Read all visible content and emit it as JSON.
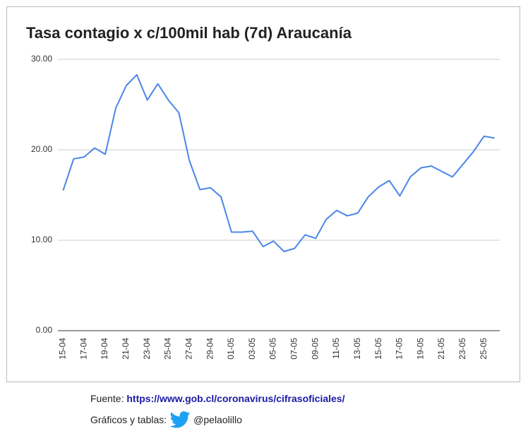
{
  "chart_data": {
    "type": "line",
    "title": "Tasa contagio x c/100mil hab (7d) Araucanía",
    "categories": [
      "15-04",
      null,
      "17-04",
      null,
      "19-04",
      null,
      "21-04",
      null,
      "23-04",
      null,
      "25-04",
      null,
      "27-04",
      null,
      "29-04",
      null,
      "01-05",
      null,
      "03-05",
      null,
      "05-05",
      null,
      "07-05",
      null,
      "09-05",
      null,
      "11-05",
      null,
      "13-05",
      null,
      "15-05",
      null,
      "17-05",
      null,
      "19-05",
      null,
      "21-05",
      null,
      "23-05",
      null,
      "25-05",
      null
    ],
    "series": [
      {
        "color": "#4a86e8",
        "values": [
          15.5,
          19.0,
          19.2,
          20.2,
          19.5,
          24.6,
          27.1,
          28.3,
          25.5,
          27.3,
          25.5,
          24.1,
          18.8,
          15.6,
          15.8,
          14.8,
          10.9,
          10.9,
          11.0,
          9.3,
          9.9,
          8.75,
          9.1,
          10.6,
          10.2,
          12.3,
          13.3,
          12.7,
          13.0,
          14.8,
          15.9,
          16.6,
          14.9,
          17.0,
          18.0,
          18.2,
          17.6,
          17.0,
          18.4,
          19.8,
          21.5,
          21.3
        ]
      }
    ],
    "ylim": [
      0,
      30
    ],
    "yticks": [
      {
        "value": 0,
        "label": "0.00"
      },
      {
        "value": 10,
        "label": "10.00"
      },
      {
        "value": 20,
        "label": "20.00"
      },
      {
        "value": 30,
        "label": "30.00"
      }
    ],
    "grid": true
  },
  "footer": {
    "source_label": "Fuente:",
    "source_url": "https://www.gob.cl/coronavirus/cifrasoficiales/",
    "credits_label": "Gráficos y tablas:",
    "handle": "@pelaolillo"
  }
}
